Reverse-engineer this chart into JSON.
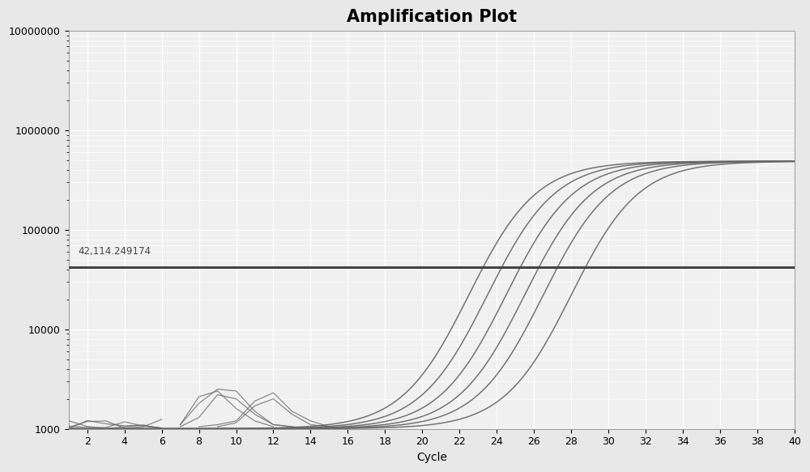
{
  "title": "Amplification Plot",
  "xlabel": "Cycle",
  "xlim": [
    1,
    40
  ],
  "ylim_log": [
    1000,
    10000000
  ],
  "x_ticks": [
    2,
    4,
    6,
    8,
    10,
    12,
    14,
    16,
    18,
    20,
    22,
    24,
    26,
    28,
    30,
    32,
    34,
    36,
    38,
    40
  ],
  "threshold_y": 42114.249174,
  "threshold_label": "42,114.249174",
  "background_color": "#e8e8e8",
  "plot_bg_color": "#f0f0f0",
  "grid_color": "#ffffff",
  "line_color": "#666666",
  "threshold_color": "#444444",
  "title_fontsize": 15,
  "label_fontsize": 10,
  "tick_fontsize": 9,
  "curve_midpoints": [
    22.5,
    23.5,
    24.5,
    25.5,
    26.5,
    28.0
  ],
  "plateau": 490000,
  "curve_k": 0.55
}
